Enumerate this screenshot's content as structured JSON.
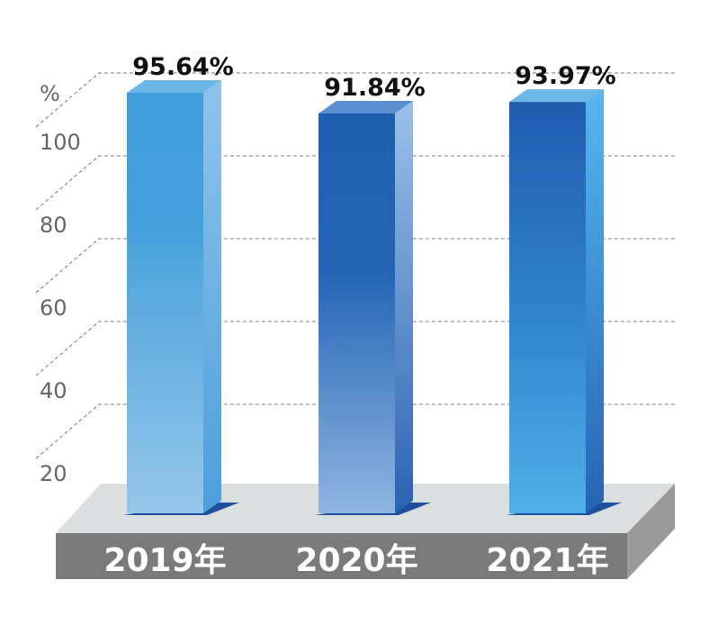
{
  "chart_data": {
    "type": "bar",
    "style": "3d",
    "categories": [
      "2019年",
      "2020年",
      "2021年"
    ],
    "values": [
      95.64,
      91.84,
      93.97
    ],
    "data_labels": [
      "95.64%",
      "91.84%",
      "93.97%"
    ],
    "ylabel": "%",
    "yticks": [
      "100",
      "80",
      "60",
      "40",
      "20"
    ],
    "grid": true,
    "colors": {
      "bar_2019": "#3f9ddb",
      "bar_2020": "#1f5fb0",
      "bar_2021": "#2268b8",
      "floor_top": "#dcdfe0",
      "floor_front": "#7a7a7a",
      "floor_side": "#9a9a9a"
    }
  }
}
